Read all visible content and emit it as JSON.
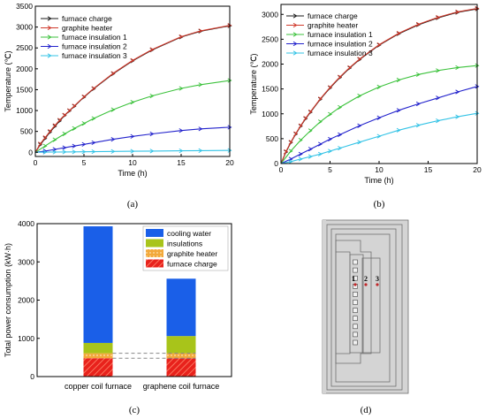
{
  "chart_data": [
    {
      "panel": "(a)",
      "type": "line",
      "xlabel": "Time (h)",
      "ylabel": "Temperature (℃)",
      "xlim": [
        0,
        20
      ],
      "ylim": [
        -100,
        3500
      ],
      "xticks": [
        0,
        5,
        10,
        15,
        20
      ],
      "yticks": [
        0,
        500,
        1000,
        1500,
        2000,
        2500,
        3000,
        3500
      ],
      "legend_position": "top-left",
      "series": [
        {
          "name": "furnace charge",
          "color": "#1a1a1a",
          "x": [
            0,
            0.5,
            1,
            1.5,
            2,
            2.5,
            3,
            3.5,
            4,
            5,
            6,
            8,
            10,
            12,
            15,
            17,
            20
          ],
          "y": [
            0,
            180,
            330,
            480,
            620,
            750,
            880,
            990,
            1100,
            1320,
            1520,
            1880,
            2190,
            2450,
            2760,
            2900,
            3030
          ]
        },
        {
          "name": "graphite heater",
          "color": "#d0392b",
          "x": [
            0,
            0.5,
            1,
            1.5,
            2,
            2.5,
            3,
            3.5,
            4,
            5,
            6,
            8,
            10,
            12,
            15,
            17,
            20
          ],
          "y": [
            0,
            200,
            350,
            500,
            640,
            770,
            890,
            1000,
            1110,
            1330,
            1530,
            1890,
            2200,
            2460,
            2770,
            2910,
            3040
          ]
        },
        {
          "name": "furnace insulation 1",
          "color": "#3cc23c",
          "x": [
            0,
            1,
            2,
            3,
            4,
            5,
            6,
            8,
            10,
            12,
            15,
            17,
            20
          ],
          "y": [
            0,
            150,
            300,
            440,
            570,
            690,
            810,
            1020,
            1200,
            1350,
            1530,
            1620,
            1720
          ]
        },
        {
          "name": "furnace insulation 2",
          "color": "#2222cc",
          "x": [
            0,
            1,
            2,
            3,
            4,
            5,
            6,
            8,
            10,
            12,
            15,
            17,
            20
          ],
          "y": [
            0,
            30,
            70,
            110,
            150,
            190,
            230,
            310,
            380,
            440,
            520,
            560,
            600
          ]
        },
        {
          "name": "furnace insulation 3",
          "color": "#33c3e6",
          "x": [
            0,
            1,
            2,
            3,
            4,
            5,
            6,
            8,
            10,
            12,
            15,
            17,
            20
          ],
          "y": [
            0,
            3,
            5,
            8,
            10,
            13,
            15,
            20,
            25,
            30,
            36,
            40,
            45
          ]
        }
      ]
    },
    {
      "panel": "(b)",
      "type": "line",
      "xlabel": "Time (h)",
      "ylabel": "Temperature (℃)",
      "xlim": [
        0,
        20
      ],
      "ylim": [
        0,
        3200
      ],
      "xticks": [
        0,
        5,
        10,
        15,
        20
      ],
      "yticks": [
        0,
        500,
        1000,
        1500,
        2000,
        2500,
        3000
      ],
      "legend_position": "top-left",
      "series": [
        {
          "name": "furnace charge",
          "color": "#1a1a1a",
          "x": [
            0,
            0.5,
            1,
            1.5,
            2,
            2.5,
            3,
            4,
            5,
            6,
            7,
            8,
            10,
            12,
            14,
            16,
            18,
            20
          ],
          "y": [
            0,
            230,
            420,
            590,
            750,
            900,
            1030,
            1290,
            1520,
            1730,
            1920,
            2090,
            2380,
            2610,
            2790,
            2930,
            3040,
            3110
          ]
        },
        {
          "name": "graphite heater",
          "color": "#d0392b",
          "x": [
            0,
            0.5,
            1,
            1.5,
            2,
            2.5,
            3,
            4,
            5,
            6,
            7,
            8,
            10,
            12,
            14,
            16,
            18,
            20
          ],
          "y": [
            0,
            240,
            430,
            600,
            760,
            910,
            1040,
            1300,
            1530,
            1740,
            1930,
            2100,
            2390,
            2620,
            2800,
            2940,
            3050,
            3120
          ]
        },
        {
          "name": "furnace insulation 1",
          "color": "#3cc23c",
          "x": [
            0,
            1,
            2,
            3,
            4,
            5,
            6,
            8,
            10,
            12,
            14,
            16,
            18,
            20
          ],
          "y": [
            0,
            250,
            470,
            660,
            840,
            990,
            1130,
            1360,
            1540,
            1680,
            1790,
            1870,
            1930,
            1970
          ]
        },
        {
          "name": "furnace insulation 2",
          "color": "#2222cc",
          "x": [
            0,
            1,
            2,
            3,
            4,
            5,
            6,
            8,
            10,
            12,
            14,
            16,
            18,
            20
          ],
          "y": [
            0,
            90,
            190,
            290,
            390,
            490,
            580,
            760,
            920,
            1070,
            1200,
            1320,
            1440,
            1550
          ]
        },
        {
          "name": "furnace insulation 3",
          "color": "#33c3e6",
          "x": [
            0,
            1,
            2,
            3,
            4,
            5,
            6,
            8,
            10,
            12,
            14,
            16,
            18,
            20
          ],
          "y": [
            0,
            40,
            90,
            140,
            190,
            250,
            310,
            430,
            550,
            670,
            770,
            860,
            940,
            1010
          ]
        }
      ]
    },
    {
      "panel": "(c)",
      "type": "bar",
      "stacked": true,
      "ylabel": "Total power consumption (kW·h)",
      "ylim": [
        0,
        4000
      ],
      "yticks": [
        0,
        1000,
        2000,
        3000,
        4000
      ],
      "categories": [
        "copper coil furnace",
        "graphene coil furnace"
      ],
      "legend_position": "top-right",
      "series": [
        {
          "name": "furnace charge",
          "color": "#e8221c",
          "pattern": "hatch",
          "values": [
            480,
            480
          ]
        },
        {
          "name": "graphite heater",
          "color": "#f2a93b",
          "pattern": "dots",
          "values": [
            130,
            130
          ]
        },
        {
          "name": "insulations",
          "color": "#a8c41a",
          "values": [
            270,
            450
          ]
        },
        {
          "name": "cooling water",
          "color": "#1a5fe8",
          "values": [
            3050,
            1500
          ]
        }
      ]
    }
  ],
  "diagram_d": {
    "panel": "(d)",
    "labels": [
      "1",
      "2",
      "3"
    ]
  }
}
